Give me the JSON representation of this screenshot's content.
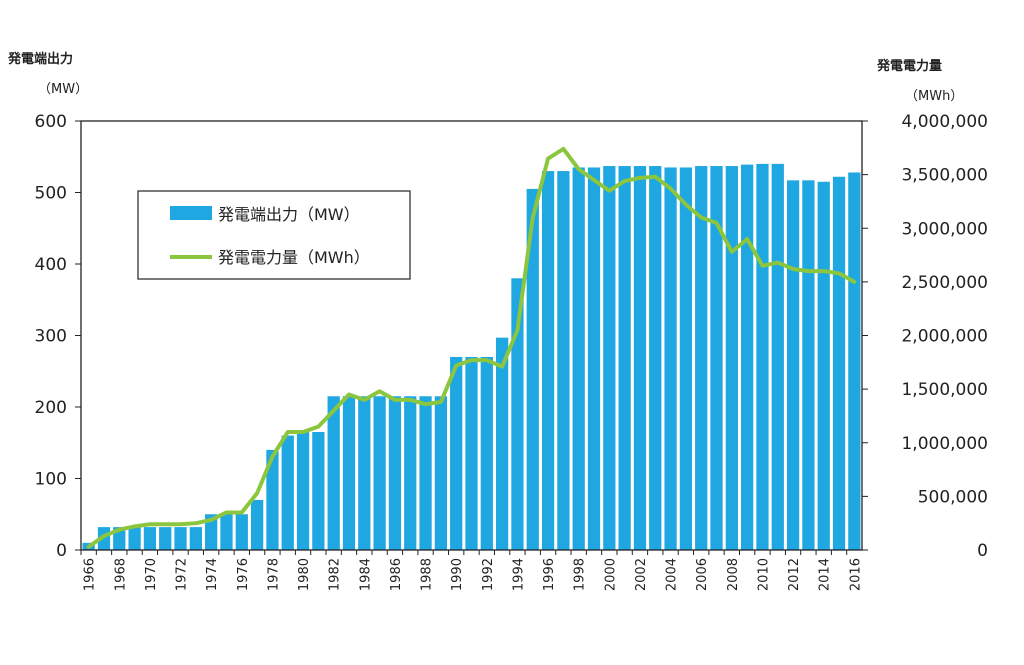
{
  "chart_data": {
    "type": "bar",
    "title": "",
    "left_axis": {
      "title": "発電端出力",
      "unit": "（MW）",
      "ylim": [
        0,
        600
      ],
      "ticks": [
        0,
        100,
        200,
        300,
        400,
        500,
        600
      ]
    },
    "right_axis": {
      "title": "発電電力量",
      "unit": "（MWh）",
      "ylim": [
        0,
        4000000
      ],
      "ticks": [
        0,
        500000,
        1000000,
        1500000,
        2000000,
        2500000,
        3000000,
        3500000,
        4000000
      ],
      "tick_labels": [
        "0",
        "500,000",
        "1,000,000",
        "1,500,000",
        "2,000,000",
        "2,500,000",
        "3,000,000",
        "3,500,000",
        "4,000,000"
      ]
    },
    "x_tick_labels": [
      "1966",
      "1968",
      "1970",
      "1972",
      "1974",
      "1976",
      "1978",
      "1980",
      "1982",
      "1984",
      "1986",
      "1988",
      "1990",
      "1992",
      "1994",
      "1996",
      "1998",
      "2000",
      "2002",
      "2004",
      "2006",
      "2008",
      "2010",
      "2012",
      "2014",
      "2016"
    ],
    "grid": false,
    "legend_position": "upper-left inside plot",
    "years": [
      1966,
      1967,
      1968,
      1969,
      1970,
      1971,
      1972,
      1973,
      1974,
      1975,
      1976,
      1977,
      1978,
      1979,
      1980,
      1981,
      1982,
      1983,
      1984,
      1985,
      1986,
      1987,
      1988,
      1989,
      1990,
      1991,
      1992,
      1993,
      1994,
      1995,
      1996,
      1997,
      1998,
      1999,
      2000,
      2001,
      2002,
      2003,
      2004,
      2005,
      2006,
      2007,
      2008,
      2009,
      2010,
      2011,
      2012,
      2013,
      2014,
      2015,
      2016
    ],
    "series": [
      {
        "name": "発電端出力（MW）",
        "type": "bar",
        "axis": "left",
        "color": "#1ea7e1",
        "values": [
          10,
          32,
          32,
          32,
          32,
          32,
          32,
          32,
          50,
          50,
          50,
          70,
          140,
          160,
          165,
          165,
          215,
          215,
          215,
          215,
          215,
          215,
          215,
          215,
          270,
          270,
          270,
          297,
          380,
          505,
          530,
          530,
          535,
          535,
          537,
          537,
          537,
          537,
          535,
          535,
          537,
          537,
          537,
          539,
          540,
          540,
          517,
          517,
          515,
          522,
          528
        ]
      },
      {
        "name": "発電電力量（MWh）",
        "type": "line",
        "axis": "right",
        "color": "#8cc63f",
        "values": [
          30000,
          130000,
          190000,
          220000,
          240000,
          240000,
          240000,
          250000,
          280000,
          350000,
          350000,
          530000,
          870000,
          1100000,
          1100000,
          1150000,
          1300000,
          1450000,
          1400000,
          1480000,
          1400000,
          1400000,
          1360000,
          1380000,
          1720000,
          1770000,
          1770000,
          1710000,
          2050000,
          3100000,
          3650000,
          3740000,
          3550000,
          3450000,
          3350000,
          3440000,
          3470000,
          3480000,
          3370000,
          3220000,
          3100000,
          3050000,
          2780000,
          2900000,
          2650000,
          2680000,
          2620000,
          2600000,
          2600000,
          2580000,
          2500000
        ]
      }
    ]
  }
}
